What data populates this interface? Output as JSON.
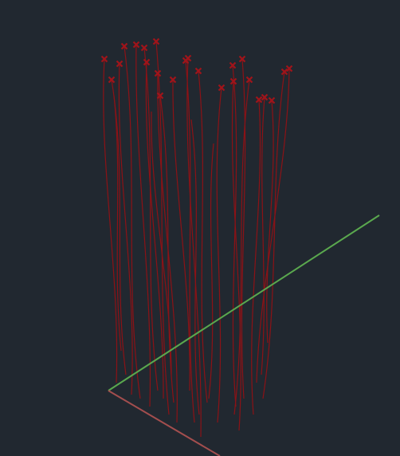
{
  "viewport": {
    "background": "#212830",
    "axes": {
      "y_axis_color": "#5aa84e",
      "x_axis_color": "#a34e4e"
    },
    "strand_color": "#8c1216",
    "marker_color": "#a0141a",
    "marker_icon": "x-marker-icon"
  }
}
